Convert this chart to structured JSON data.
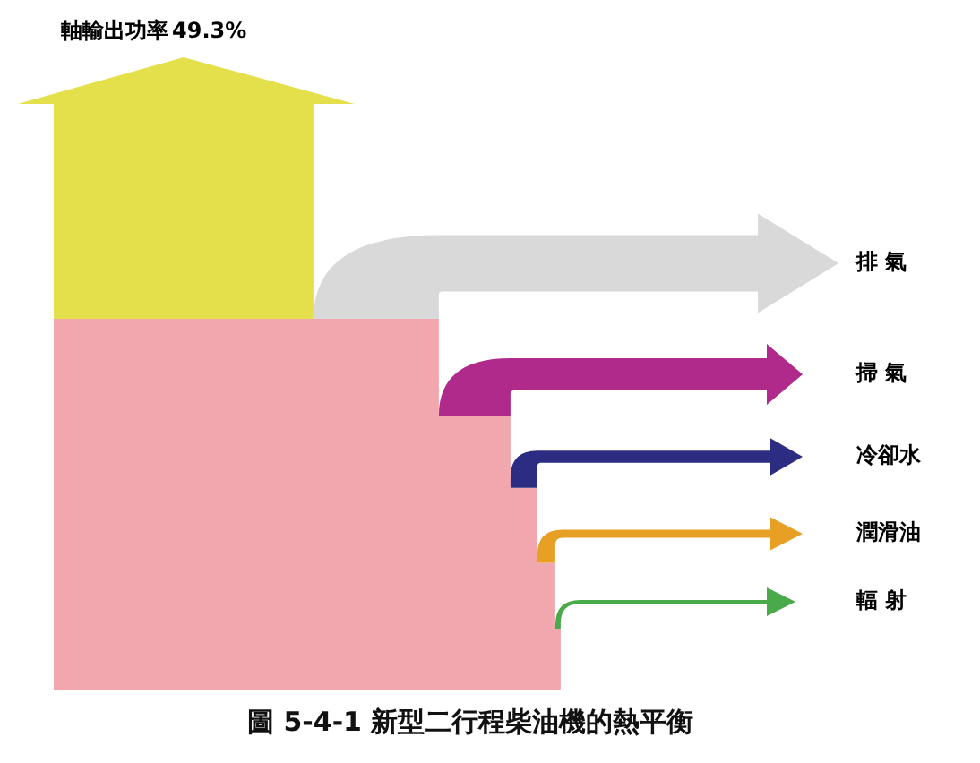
{
  "chart_data": {
    "type": "other",
    "title": "圖 5-4-1 新型二行程柴油機的熱平衡",
    "categories": [
      "軸輸出功率",
      "排 氣",
      "掃 氣",
      "冷卻水",
      "潤滑油",
      "輻 射"
    ],
    "values": [
      49.3,
      null,
      null,
      null,
      null,
      null
    ],
    "value_labels": [
      "49.3%",
      null,
      null,
      null,
      null,
      null
    ],
    "color": "#f2a6ae",
    "colors": [
      "#e4e04c",
      "#d9d9d9",
      "#b02a8c",
      "#2c2c82",
      "#e8a024",
      "#4aaa4a"
    ]
  }
}
